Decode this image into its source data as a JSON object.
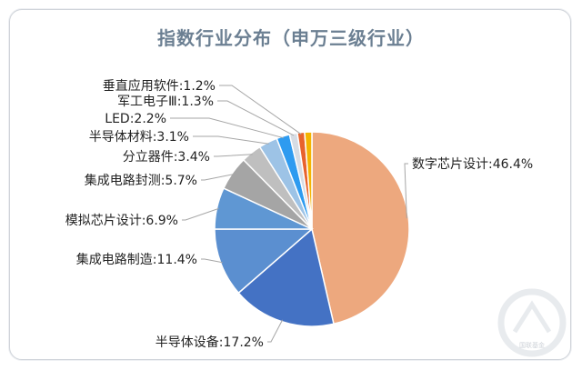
{
  "chart_data": {
    "type": "pie",
    "title": "指数行业分布（申万三级行业）",
    "slices": [
      {
        "label": "数字芯片设计:46.4%",
        "name": "数字芯片设计",
        "value": 46.4,
        "color": "#eda87e"
      },
      {
        "label": "半导体设备:17.2%",
        "name": "半导体设备",
        "value": 17.2,
        "color": "#4472c4"
      },
      {
        "label": "集成电路制造:11.4%",
        "name": "集成电路制造",
        "value": 11.4,
        "color": "#5b8fd0"
      },
      {
        "label": "模拟芯片设计:6.9%",
        "name": "模拟芯片设计",
        "value": 6.9,
        "color": "#5f97d3"
      },
      {
        "label": "集成电路封测:5.7%",
        "name": "集成电路封测",
        "value": 5.7,
        "color": "#a5a5a5"
      },
      {
        "label": "分立器件:3.4%",
        "name": "分立器件",
        "value": 3.4,
        "color": "#bfbfbf"
      },
      {
        "label": "半导体材料:3.1%",
        "name": "半导体材料",
        "value": 3.1,
        "color": "#9dc3e6"
      },
      {
        "label": "LED:2.2%",
        "name": "LED",
        "value": 2.2,
        "color": "#2e9bf0"
      },
      {
        "label": "军工电子Ⅲ:1.3%",
        "name": "军工电子Ⅲ",
        "value": 1.3,
        "color": "#d6dce4"
      },
      {
        "label": "垂直应用软件:1.2%",
        "name": "垂直应用软件",
        "value": 1.2,
        "color": "#e8632c"
      },
      {
        "label": "",
        "name": "",
        "value": 1.2,
        "color": "#f4b400"
      }
    ],
    "legend": "none",
    "watermark_text": "国联基金"
  }
}
